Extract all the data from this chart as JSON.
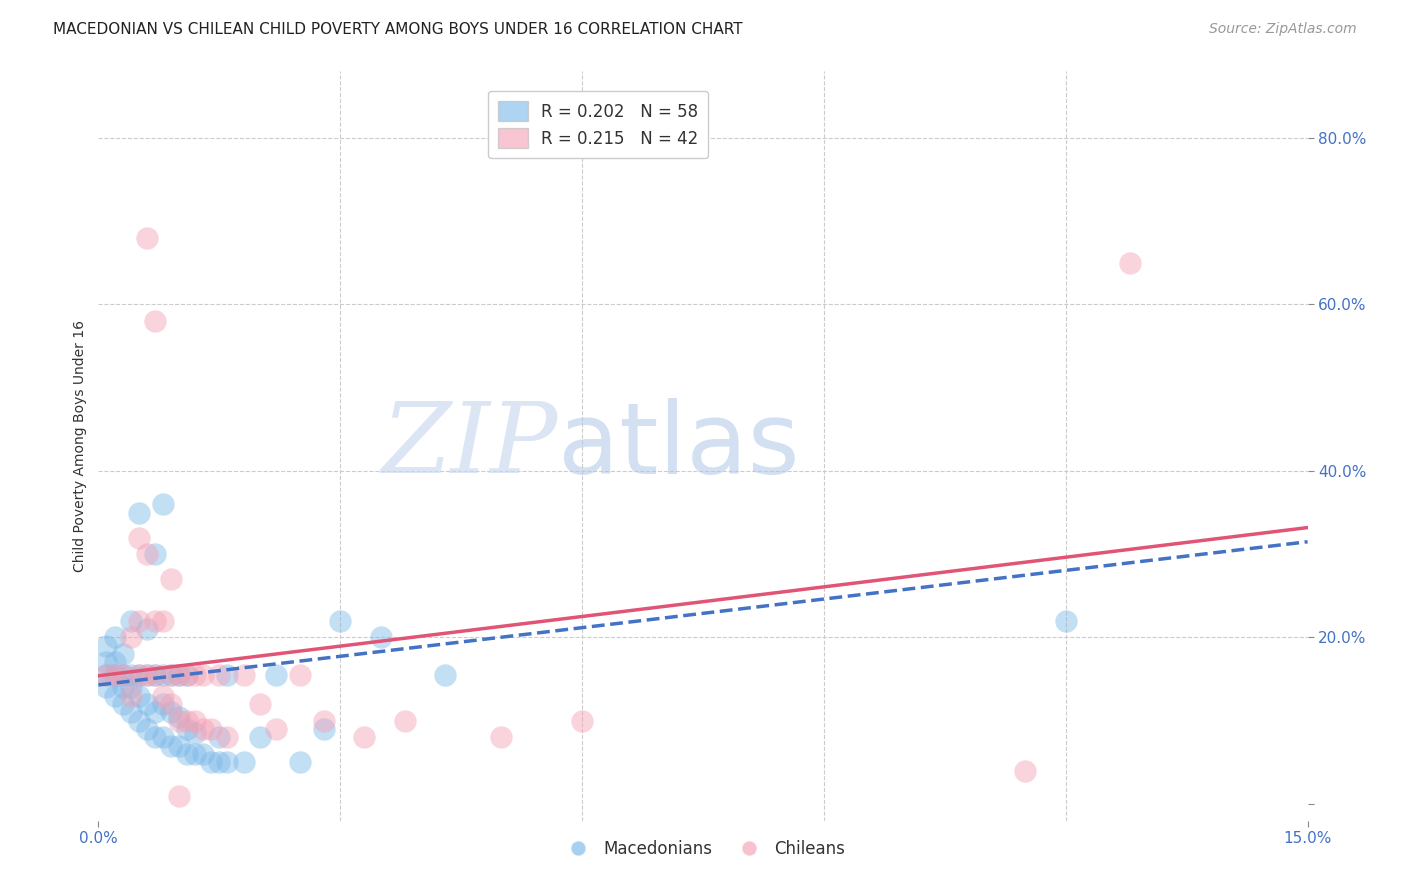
{
  "title": "MACEDONIAN VS CHILEAN CHILD POVERTY AMONG BOYS UNDER 16 CORRELATION CHART",
  "source": "Source: ZipAtlas.com",
  "ylabel": "Child Poverty Among Boys Under 16",
  "xlim": [
    0.0,
    0.15
  ],
  "ylim": [
    -0.02,
    0.88
  ],
  "xticks": [
    0.0,
    0.15
  ],
  "xtick_labels": [
    "0.0%",
    "15.0%"
  ],
  "yticks": [
    0.0,
    0.2,
    0.4,
    0.6,
    0.8
  ],
  "ytick_labels": [
    "",
    "20.0%",
    "40.0%",
    "60.0%",
    "80.0%"
  ],
  "grid_yticks": [
    0.2,
    0.4,
    0.6,
    0.8
  ],
  "grid_xticks": [
    0.03,
    0.06,
    0.09,
    0.12
  ],
  "legend_label_blue": "R = 0.202   N = 58",
  "legend_label_pink": "R = 0.215   N = 42",
  "legend_label_blue_r": "0.202",
  "legend_label_blue_n": "58",
  "legend_label_pink_r": "0.215",
  "legend_label_pink_n": "42",
  "macedonian_color": "#7ab8e8",
  "chilean_color": "#f4a0b4",
  "macedonian_line_color": "#4472c4",
  "chilean_line_color": "#e05575",
  "watermark_zip": "ZIP",
  "watermark_atlas": "atlas",
  "background_color": "#ffffff",
  "grid_color": "#cccccc",
  "title_fontsize": 11,
  "axis_label_fontsize": 10,
  "tick_fontsize": 11,
  "source_fontsize": 10,
  "macedonian_points": [
    [
      0.001,
      0.14
    ],
    [
      0.001,
      0.155
    ],
    [
      0.001,
      0.17
    ],
    [
      0.001,
      0.19
    ],
    [
      0.002,
      0.13
    ],
    [
      0.002,
      0.155
    ],
    [
      0.002,
      0.17
    ],
    [
      0.002,
      0.2
    ],
    [
      0.003,
      0.12
    ],
    [
      0.003,
      0.14
    ],
    [
      0.003,
      0.155
    ],
    [
      0.003,
      0.18
    ],
    [
      0.004,
      0.11
    ],
    [
      0.004,
      0.14
    ],
    [
      0.004,
      0.155
    ],
    [
      0.004,
      0.22
    ],
    [
      0.005,
      0.1
    ],
    [
      0.005,
      0.13
    ],
    [
      0.005,
      0.155
    ],
    [
      0.005,
      0.35
    ],
    [
      0.006,
      0.09
    ],
    [
      0.006,
      0.12
    ],
    [
      0.006,
      0.155
    ],
    [
      0.006,
      0.21
    ],
    [
      0.007,
      0.08
    ],
    [
      0.007,
      0.11
    ],
    [
      0.007,
      0.155
    ],
    [
      0.007,
      0.3
    ],
    [
      0.008,
      0.08
    ],
    [
      0.008,
      0.12
    ],
    [
      0.008,
      0.155
    ],
    [
      0.008,
      0.36
    ],
    [
      0.009,
      0.07
    ],
    [
      0.009,
      0.11
    ],
    [
      0.009,
      0.155
    ],
    [
      0.01,
      0.07
    ],
    [
      0.01,
      0.105
    ],
    [
      0.01,
      0.155
    ],
    [
      0.011,
      0.06
    ],
    [
      0.011,
      0.09
    ],
    [
      0.011,
      0.155
    ],
    [
      0.012,
      0.06
    ],
    [
      0.012,
      0.085
    ],
    [
      0.013,
      0.06
    ],
    [
      0.014,
      0.05
    ],
    [
      0.015,
      0.05
    ],
    [
      0.015,
      0.08
    ],
    [
      0.016,
      0.05
    ],
    [
      0.016,
      0.155
    ],
    [
      0.018,
      0.05
    ],
    [
      0.02,
      0.08
    ],
    [
      0.022,
      0.155
    ],
    [
      0.025,
      0.05
    ],
    [
      0.028,
      0.09
    ],
    [
      0.03,
      0.22
    ],
    [
      0.035,
      0.2
    ],
    [
      0.043,
      0.155
    ],
    [
      0.12,
      0.22
    ]
  ],
  "chilean_points": [
    [
      0.001,
      0.155
    ],
    [
      0.002,
      0.155
    ],
    [
      0.003,
      0.155
    ],
    [
      0.004,
      0.13
    ],
    [
      0.004,
      0.2
    ],
    [
      0.005,
      0.155
    ],
    [
      0.005,
      0.22
    ],
    [
      0.005,
      0.32
    ],
    [
      0.006,
      0.155
    ],
    [
      0.006,
      0.3
    ],
    [
      0.006,
      0.68
    ],
    [
      0.007,
      0.155
    ],
    [
      0.007,
      0.22
    ],
    [
      0.007,
      0.58
    ],
    [
      0.008,
      0.13
    ],
    [
      0.008,
      0.22
    ],
    [
      0.009,
      0.12
    ],
    [
      0.009,
      0.155
    ],
    [
      0.009,
      0.27
    ],
    [
      0.01,
      0.1
    ],
    [
      0.01,
      0.155
    ],
    [
      0.011,
      0.1
    ],
    [
      0.011,
      0.155
    ],
    [
      0.012,
      0.1
    ],
    [
      0.012,
      0.155
    ],
    [
      0.013,
      0.09
    ],
    [
      0.013,
      0.155
    ],
    [
      0.014,
      0.09
    ],
    [
      0.015,
      0.155
    ],
    [
      0.016,
      0.08
    ],
    [
      0.018,
      0.155
    ],
    [
      0.02,
      0.12
    ],
    [
      0.022,
      0.09
    ],
    [
      0.025,
      0.155
    ],
    [
      0.028,
      0.1
    ],
    [
      0.033,
      0.08
    ],
    [
      0.038,
      0.1
    ],
    [
      0.05,
      0.08
    ],
    [
      0.06,
      0.1
    ],
    [
      0.115,
      0.04
    ],
    [
      0.128,
      0.65
    ],
    [
      0.01,
      0.01
    ]
  ],
  "mac_line_x0": 0.0,
  "mac_line_y0": 0.143,
  "mac_line_x1": 0.15,
  "mac_line_y1": 0.315,
  "chi_line_x0": 0.0,
  "chi_line_y0": 0.154,
  "chi_line_x1": 0.15,
  "chi_line_y1": 0.332
}
